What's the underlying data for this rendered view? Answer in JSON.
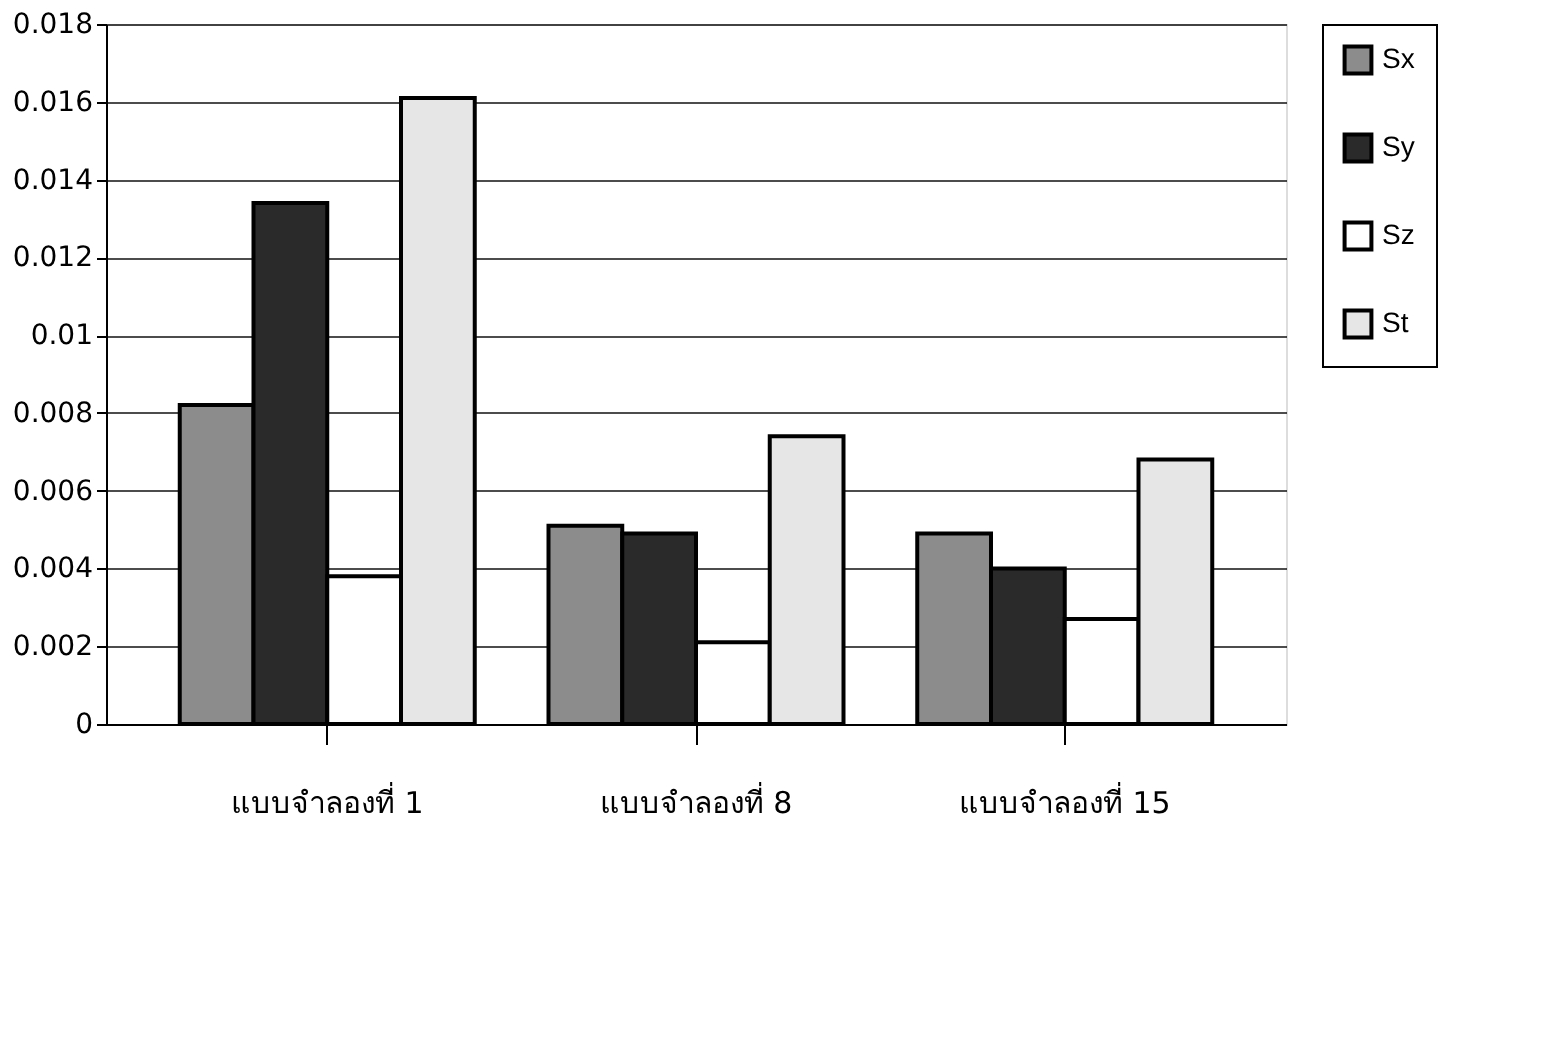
{
  "chart_data": {
    "type": "bar",
    "categories": [
      "แบบจำลองที่ 1",
      "แบบจำลองที่ 8",
      "แบบจำลองที่ 15"
    ],
    "series": [
      {
        "name": "Sx",
        "color": "#8c8c8c",
        "values": [
          0.0082,
          0.0051,
          0.0049
        ]
      },
      {
        "name": "Sy",
        "color": "#2a2a2a",
        "values": [
          0.0134,
          0.0049,
          0.004
        ]
      },
      {
        "name": "Sz",
        "color": "#ffffff",
        "values": [
          0.0038,
          0.0021,
          0.0027
        ]
      },
      {
        "name": "St",
        "color": "#e6e6e6",
        "values": [
          0.0161,
          0.0074,
          0.0068
        ]
      }
    ],
    "ylim": [
      0,
      0.018
    ],
    "yticks": [
      0,
      0.002,
      0.004,
      0.006,
      0.008,
      0.01,
      0.012,
      0.014,
      0.016,
      0.018
    ],
    "grid": "y",
    "legend": "right"
  }
}
